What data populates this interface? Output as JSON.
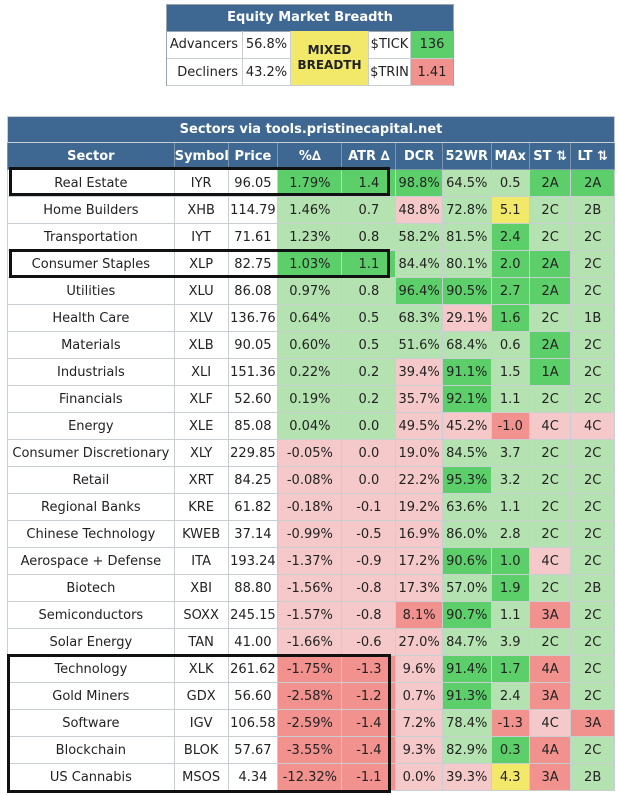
{
  "colors": {
    "header_bg": "#3e6891",
    "dark_green": "#5ccf6a",
    "light_green": "#b4e2b0",
    "light_red": "#f5c9c9",
    "dark_red": "#f1928f",
    "yellow": "#f2e86a",
    "white": "#ffffff"
  },
  "breadth": {
    "title": "Equity Market Breadth",
    "advancers_label": "Advancers",
    "advancers_value": "56.8%",
    "decliners_label": "Decliners",
    "decliners_value": "43.2%",
    "status_line1": "MIXED",
    "status_line2": "BREADTH",
    "tick_label": "$TICK",
    "tick_value": "136",
    "trin_label": "$TRIN",
    "trin_value": "1.41"
  },
  "sectors": {
    "title": "Sectors via tools.pristinecapital.net",
    "columns": [
      "Sector",
      "Symbol",
      "Price",
      "%∆",
      "ATR ∆",
      "DCR",
      "52WR",
      "MAx",
      "ST ⇅",
      "LT ⇅"
    ],
    "rows": [
      {
        "sector": "Real Estate",
        "symbol": "IYR",
        "price": "96.05",
        "pct": "1.79%",
        "atr": "1.4",
        "dcr": "98.8%",
        "wr": "64.5%",
        "max": "0.5",
        "st": "2A",
        "lt": "2A",
        "c": {
          "pct": "dg",
          "atr": "dg",
          "dcr": "dg",
          "wr": "lg",
          "max": "lg",
          "st": "dg",
          "lt": "dg"
        }
      },
      {
        "sector": "Home Builders",
        "symbol": "XHB",
        "price": "114.79",
        "pct": "1.46%",
        "atr": "0.7",
        "dcr": "48.8%",
        "wr": "72.8%",
        "max": "5.1",
        "st": "2C",
        "lt": "2B",
        "c": {
          "pct": "lg",
          "atr": "lg",
          "dcr": "lr",
          "wr": "lg",
          "max": "y",
          "st": "lg",
          "lt": "lg"
        }
      },
      {
        "sector": "Transportation",
        "symbol": "IYT",
        "price": "71.61",
        "pct": "1.23%",
        "atr": "0.8",
        "dcr": "58.2%",
        "wr": "81.5%",
        "max": "2.4",
        "st": "2C",
        "lt": "2C",
        "c": {
          "pct": "lg",
          "atr": "lg",
          "dcr": "lg",
          "wr": "lg",
          "max": "dg",
          "st": "lg",
          "lt": "lg"
        }
      },
      {
        "sector": "Consumer Staples",
        "symbol": "XLP",
        "price": "82.75",
        "pct": "1.03%",
        "atr": "1.1",
        "dcr": "84.4%",
        "wr": "80.1%",
        "max": "2.0",
        "st": "2A",
        "lt": "2C",
        "c": {
          "pct": "dg",
          "atr": "dg",
          "dcr": "lg",
          "wr": "lg",
          "max": "dg",
          "st": "dg",
          "lt": "lg"
        }
      },
      {
        "sector": "Utilities",
        "symbol": "XLU",
        "price": "86.08",
        "pct": "0.97%",
        "atr": "0.8",
        "dcr": "96.4%",
        "wr": "90.5%",
        "max": "2.7",
        "st": "2A",
        "lt": "2C",
        "c": {
          "pct": "lg",
          "atr": "lg",
          "dcr": "dg",
          "wr": "dg",
          "max": "dg",
          "st": "dg",
          "lt": "lg"
        }
      },
      {
        "sector": "Health Care",
        "symbol": "XLV",
        "price": "136.76",
        "pct": "0.64%",
        "atr": "0.5",
        "dcr": "68.3%",
        "wr": "29.1%",
        "max": "1.6",
        "st": "2C",
        "lt": "1B",
        "c": {
          "pct": "lg",
          "atr": "lg",
          "dcr": "lg",
          "wr": "lr",
          "max": "dg",
          "st": "lg",
          "lt": "lg"
        }
      },
      {
        "sector": "Materials",
        "symbol": "XLB",
        "price": "90.05",
        "pct": "0.60%",
        "atr": "0.5",
        "dcr": "51.6%",
        "wr": "68.4%",
        "max": "0.6",
        "st": "2A",
        "lt": "2C",
        "c": {
          "pct": "lg",
          "atr": "lg",
          "dcr": "lg",
          "wr": "lg",
          "max": "lg",
          "st": "dg",
          "lt": "lg"
        }
      },
      {
        "sector": "Industrials",
        "symbol": "XLI",
        "price": "151.36",
        "pct": "0.22%",
        "atr": "0.2",
        "dcr": "39.4%",
        "wr": "91.1%",
        "max": "1.5",
        "st": "1A",
        "lt": "2C",
        "c": {
          "pct": "lg",
          "atr": "lg",
          "dcr": "lr",
          "wr": "dg",
          "max": "lg",
          "st": "dg",
          "lt": "lg"
        }
      },
      {
        "sector": "Financials",
        "symbol": "XLF",
        "price": "52.60",
        "pct": "0.19%",
        "atr": "0.2",
        "dcr": "35.7%",
        "wr": "92.1%",
        "max": "1.1",
        "st": "2C",
        "lt": "2C",
        "c": {
          "pct": "lg",
          "atr": "lg",
          "dcr": "lr",
          "wr": "dg",
          "max": "lg",
          "st": "lg",
          "lt": "lg"
        }
      },
      {
        "sector": "Energy",
        "symbol": "XLE",
        "price": "85.08",
        "pct": "0.04%",
        "atr": "0.0",
        "dcr": "49.5%",
        "wr": "45.2%",
        "max": "-1.0",
        "st": "4C",
        "lt": "4C",
        "c": {
          "pct": "lg",
          "atr": "lg",
          "dcr": "lr",
          "wr": "lr",
          "max": "dr",
          "st": "lr",
          "lt": "lr"
        }
      },
      {
        "sector": "Consumer Discretionary",
        "symbol": "XLY",
        "price": "229.85",
        "pct": "-0.05%",
        "atr": "0.0",
        "dcr": "19.0%",
        "wr": "84.5%",
        "max": "3.7",
        "st": "2C",
        "lt": "2C",
        "c": {
          "pct": "lr",
          "atr": "lr",
          "dcr": "lr",
          "wr": "lg",
          "max": "lg",
          "st": "lg",
          "lt": "lg"
        }
      },
      {
        "sector": "Retail",
        "symbol": "XRT",
        "price": "84.25",
        "pct": "-0.08%",
        "atr": "0.0",
        "dcr": "22.2%",
        "wr": "95.3%",
        "max": "3.2",
        "st": "2C",
        "lt": "2C",
        "c": {
          "pct": "lr",
          "atr": "lr",
          "dcr": "lr",
          "wr": "dg",
          "max": "lg",
          "st": "lg",
          "lt": "lg"
        }
      },
      {
        "sector": "Regional Banks",
        "symbol": "KRE",
        "price": "61.82",
        "pct": "-0.18%",
        "atr": "-0.1",
        "dcr": "19.2%",
        "wr": "63.6%",
        "max": "1.1",
        "st": "2C",
        "lt": "2C",
        "c": {
          "pct": "lr",
          "atr": "lr",
          "dcr": "lr",
          "wr": "lg",
          "max": "lg",
          "st": "lg",
          "lt": "lg"
        }
      },
      {
        "sector": "Chinese Technology",
        "symbol": "KWEB",
        "price": "37.14",
        "pct": "-0.99%",
        "atr": "-0.5",
        "dcr": "16.9%",
        "wr": "86.0%",
        "max": "2.8",
        "st": "2C",
        "lt": "2C",
        "c": {
          "pct": "lr",
          "atr": "lr",
          "dcr": "lr",
          "wr": "lg",
          "max": "lg",
          "st": "lg",
          "lt": "lg"
        }
      },
      {
        "sector": "Aerospace + Defense",
        "symbol": "ITA",
        "price": "193.24",
        "pct": "-1.37%",
        "atr": "-0.9",
        "dcr": "17.2%",
        "wr": "90.6%",
        "max": "1.0",
        "st": "4C",
        "lt": "2C",
        "c": {
          "pct": "lr",
          "atr": "lr",
          "dcr": "lr",
          "wr": "dg",
          "max": "dg",
          "st": "lr",
          "lt": "lg"
        }
      },
      {
        "sector": "Biotech",
        "symbol": "XBI",
        "price": "88.80",
        "pct": "-1.56%",
        "atr": "-0.8",
        "dcr": "17.3%",
        "wr": "57.0%",
        "max": "1.9",
        "st": "2C",
        "lt": "2B",
        "c": {
          "pct": "lr",
          "atr": "lr",
          "dcr": "lr",
          "wr": "lg",
          "max": "dg",
          "st": "lg",
          "lt": "lg"
        }
      },
      {
        "sector": "Semiconductors",
        "symbol": "SOXX",
        "price": "245.15",
        "pct": "-1.57%",
        "atr": "-0.8",
        "dcr": "8.1%",
        "wr": "90.7%",
        "max": "1.1",
        "st": "3A",
        "lt": "2C",
        "c": {
          "pct": "lr",
          "atr": "lr",
          "dcr": "dr",
          "wr": "dg",
          "max": "lg",
          "st": "dr",
          "lt": "lg"
        }
      },
      {
        "sector": "Solar Energy",
        "symbol": "TAN",
        "price": "41.00",
        "pct": "-1.66%",
        "atr": "-0.6",
        "dcr": "27.0%",
        "wr": "84.7%",
        "max": "3.9",
        "st": "2C",
        "lt": "2C",
        "c": {
          "pct": "lr",
          "atr": "lr",
          "dcr": "lr",
          "wr": "lg",
          "max": "lg",
          "st": "lg",
          "lt": "lg"
        }
      },
      {
        "sector": "Technology",
        "symbol": "XLK",
        "price": "261.62",
        "pct": "-1.75%",
        "atr": "-1.3",
        "dcr": "9.6%",
        "wr": "91.4%",
        "max": "1.7",
        "st": "4A",
        "lt": "2C",
        "c": {
          "pct": "dr",
          "atr": "dr",
          "dcr": "lr",
          "wr": "dg",
          "max": "dg",
          "st": "dr",
          "lt": "lg"
        }
      },
      {
        "sector": "Gold Miners",
        "symbol": "GDX",
        "price": "56.60",
        "pct": "-2.58%",
        "atr": "-1.2",
        "dcr": "0.7%",
        "wr": "91.3%",
        "max": "2.4",
        "st": "3A",
        "lt": "2C",
        "c": {
          "pct": "dr",
          "atr": "dr",
          "dcr": "lr",
          "wr": "dg",
          "max": "lg",
          "st": "dr",
          "lt": "lg"
        }
      },
      {
        "sector": "Software",
        "symbol": "IGV",
        "price": "106.58",
        "pct": "-2.59%",
        "atr": "-1.4",
        "dcr": "7.2%",
        "wr": "78.4%",
        "max": "-1.3",
        "st": "4C",
        "lt": "3A",
        "c": {
          "pct": "dr",
          "atr": "dr",
          "dcr": "lr",
          "wr": "lg",
          "max": "dr",
          "st": "lr",
          "lt": "dr"
        }
      },
      {
        "sector": "Blockchain",
        "symbol": "BLOK",
        "price": "57.67",
        "pct": "-3.55%",
        "atr": "-1.4",
        "dcr": "9.3%",
        "wr": "82.9%",
        "max": "0.3",
        "st": "4A",
        "lt": "2C",
        "c": {
          "pct": "dr",
          "atr": "dr",
          "dcr": "lr",
          "wr": "lg",
          "max": "dg",
          "st": "dr",
          "lt": "lg"
        }
      },
      {
        "sector": "US Cannabis",
        "symbol": "MSOS",
        "price": "4.34",
        "pct": "-12.32%",
        "atr": "-1.1",
        "dcr": "0.0%",
        "wr": "39.3%",
        "max": "4.3",
        "st": "3A",
        "lt": "2B",
        "c": {
          "pct": "dr",
          "atr": "dr",
          "dcr": "lr",
          "wr": "lr",
          "max": "y",
          "st": "dr",
          "lt": "lg"
        }
      }
    ]
  }
}
